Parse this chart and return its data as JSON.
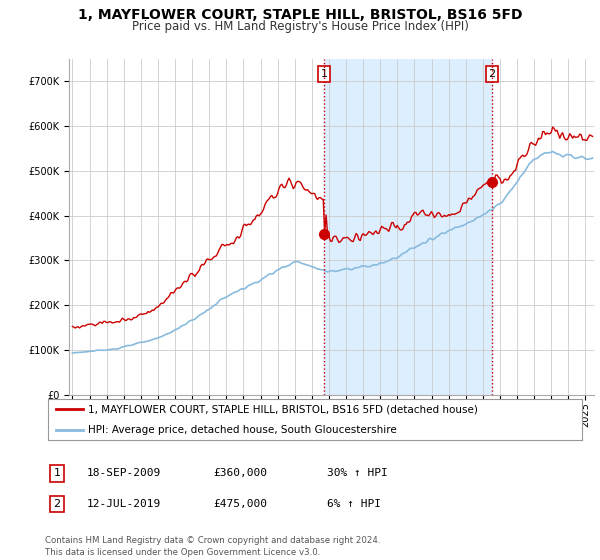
{
  "title": "1, MAYFLOWER COURT, STAPLE HILL, BRISTOL, BS16 5FD",
  "subtitle": "Price paid vs. HM Land Registry's House Price Index (HPI)",
  "ylim": [
    0,
    750000
  ],
  "yticks": [
    0,
    100000,
    200000,
    300000,
    400000,
    500000,
    600000,
    700000
  ],
  "ytick_labels": [
    "£0",
    "£100K",
    "£200K",
    "£300K",
    "£400K",
    "£500K",
    "£600K",
    "£700K"
  ],
  "background_color": "#ffffff",
  "grid_color": "#cccccc",
  "sale1_x": 2009.72,
  "sale1_price": 360000,
  "sale2_x": 2019.54,
  "sale2_price": 475000,
  "legend_line1": "1, MAYFLOWER COURT, STAPLE HILL, BRISTOL, BS16 5FD (detached house)",
  "legend_line2": "HPI: Average price, detached house, South Gloucestershire",
  "table_row1": [
    "1",
    "18-SEP-2009",
    "£360,000",
    "30% ↑ HPI"
  ],
  "table_row2": [
    "2",
    "12-JUL-2019",
    "£475,000",
    "6% ↑ HPI"
  ],
  "footer": "Contains HM Land Registry data © Crown copyright and database right 2024.\nThis data is licensed under the Open Government Licence v3.0.",
  "red_color": "#cc0000",
  "blue_color": "#88bbdd",
  "span_color": "#ddeeff",
  "title_fontsize": 10,
  "subtitle_fontsize": 8.5,
  "tick_fontsize": 7,
  "legend_fontsize": 7.5
}
